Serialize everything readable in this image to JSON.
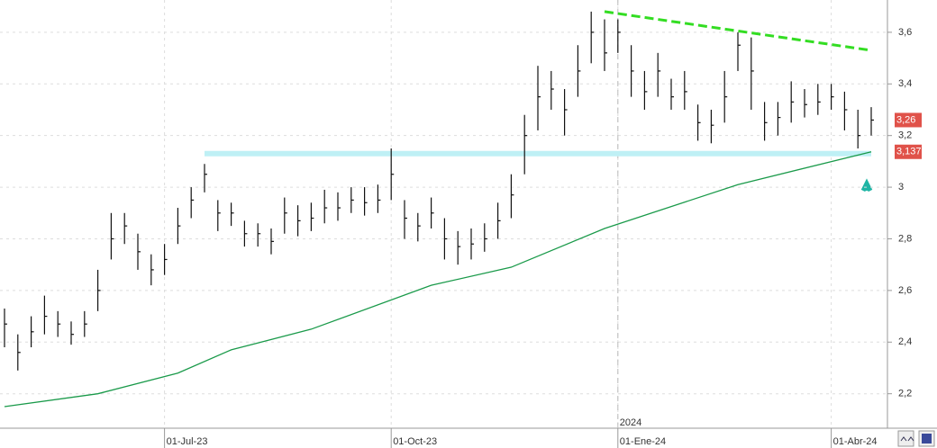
{
  "chart_data": {
    "type": "ohlc",
    "categories": [
      null,
      null,
      null,
      null,
      null,
      null,
      null,
      null,
      null,
      null,
      null,
      null,
      "01-Jul-23",
      null,
      null,
      null,
      null,
      null,
      null,
      null,
      null,
      null,
      null,
      null,
      null,
      null,
      null,
      null,
      null,
      "01-Oct-23",
      null,
      null,
      null,
      null,
      null,
      null,
      null,
      null,
      null,
      null,
      null,
      null,
      null,
      null,
      null,
      null,
      "01-Ene-24",
      null,
      null,
      null,
      null,
      null,
      null,
      null,
      null,
      null,
      null,
      null,
      null,
      null,
      null,
      null,
      "01-Abr-24",
      null,
      null,
      null
    ],
    "year_label": "2024",
    "color": "#111111",
    "high": [
      2.53,
      2.43,
      2.5,
      2.58,
      2.52,
      2.48,
      2.52,
      2.68,
      2.9,
      2.9,
      2.82,
      2.74,
      2.78,
      2.92,
      3.0,
      3.09,
      2.95,
      2.94,
      2.87,
      2.86,
      2.84,
      2.96,
      2.93,
      2.94,
      2.99,
      2.98,
      3.0,
      3.0,
      3.01,
      3.15,
      2.95,
      2.9,
      2.96,
      2.88,
      2.83,
      2.84,
      2.86,
      2.94,
      3.05,
      3.28,
      3.47,
      3.45,
      3.38,
      3.55,
      3.68,
      3.65,
      3.65,
      3.55,
      3.45,
      3.52,
      3.42,
      3.45,
      3.32,
      3.3,
      3.45,
      3.6,
      3.58,
      3.33,
      3.33,
      3.41,
      3.38,
      3.4,
      3.4,
      3.37,
      3.3,
      3.31
    ],
    "low": [
      2.38,
      2.29,
      2.38,
      2.43,
      2.42,
      2.39,
      2.42,
      2.52,
      2.72,
      2.78,
      2.68,
      2.62,
      2.66,
      2.78,
      2.88,
      2.98,
      2.83,
      2.85,
      2.77,
      2.77,
      2.74,
      2.82,
      2.81,
      2.83,
      2.86,
      2.87,
      2.9,
      2.89,
      2.9,
      2.95,
      2.8,
      2.79,
      2.84,
      2.72,
      2.7,
      2.72,
      2.75,
      2.8,
      2.88,
      3.05,
      3.22,
      3.3,
      3.2,
      3.35,
      3.48,
      3.45,
      3.52,
      3.35,
      3.3,
      3.35,
      3.3,
      3.3,
      3.18,
      3.17,
      3.25,
      3.45,
      3.3,
      3.18,
      3.2,
      3.25,
      3.27,
      3.28,
      3.3,
      3.22,
      3.15,
      3.2
    ],
    "close": [
      2.47,
      2.36,
      2.44,
      2.5,
      2.47,
      2.43,
      2.47,
      2.6,
      2.8,
      2.85,
      2.75,
      2.68,
      2.72,
      2.85,
      2.95,
      3.05,
      2.9,
      2.9,
      2.82,
      2.82,
      2.79,
      2.9,
      2.87,
      2.88,
      2.92,
      2.92,
      2.95,
      2.94,
      2.95,
      3.05,
      2.88,
      2.85,
      2.9,
      2.8,
      2.77,
      2.78,
      2.8,
      2.87,
      2.97,
      3.2,
      3.35,
      3.38,
      3.3,
      3.45,
      3.6,
      3.52,
      3.6,
      3.45,
      3.37,
      3.45,
      3.35,
      3.37,
      3.25,
      3.24,
      3.35,
      3.55,
      3.45,
      3.25,
      3.27,
      3.33,
      3.32,
      3.33,
      3.35,
      3.3,
      3.2,
      3.26
    ],
    "moving_average": {
      "color": "#1a9a4a",
      "x": [
        0,
        7,
        13,
        17,
        23,
        32,
        38,
        45,
        55,
        65
      ],
      "values": [
        2.15,
        2.2,
        2.28,
        2.37,
        2.45,
        2.62,
        2.69,
        2.84,
        3.01,
        3.137
      ]
    },
    "resistance": {
      "color": "#33dd22",
      "x": [
        45,
        65
      ],
      "values": [
        3.68,
        3.53
      ]
    },
    "support": {
      "color": "#bff0f5",
      "x": [
        15,
        65
      ],
      "values": [
        3.13,
        3.13
      ]
    },
    "last_price": {
      "value": 3.26,
      "label": "3,26"
    },
    "last_average": {
      "value": 3.137,
      "label": "3,137"
    },
    "ylim": [
      2.07,
      3.725
    ],
    "yticks": [
      {
        "value": 2.2,
        "label": "2,2"
      },
      {
        "value": 2.4,
        "label": "2,4"
      },
      {
        "value": 2.6,
        "label": "2,6"
      },
      {
        "value": 2.8,
        "label": "2,8"
      },
      3,
      {
        "value": 3.2,
        "label": "3,2"
      },
      {
        "value": 3.4,
        "label": "3,4"
      },
      {
        "value": 3.6,
        "label": "3,6"
      }
    ],
    "grid": true
  }
}
